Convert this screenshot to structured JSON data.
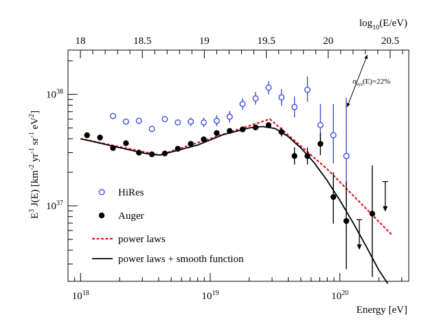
{
  "chart_data": {
    "type": "scatter",
    "x_axis": {
      "label": "Energy [eV]",
      "scale": "log",
      "range": [
        8e+17,
        3.4e+20
      ],
      "ticks": [
        {
          "value": 1e+18,
          "base": "10",
          "exp": "18"
        },
        {
          "value": 1e+19,
          "base": "10",
          "exp": "19"
        },
        {
          "value": 1e+20,
          "base": "10",
          "exp": "20"
        }
      ]
    },
    "top_axis": {
      "label_pre": "log",
      "label_sub": "10",
      "label_post": "(E/eV)",
      "range": [
        17.9,
        20.65
      ],
      "ticks": [
        {
          "value": 18,
          "label": "18"
        },
        {
          "value": 18.5,
          "label": "18.5"
        },
        {
          "value": 19,
          "label": "19"
        },
        {
          "value": 19.5,
          "label": "19.5"
        },
        {
          "value": 20,
          "label": "20"
        },
        {
          "value": 20.5,
          "label": "20.5"
        }
      ]
    },
    "y_axis": {
      "scale": "log",
      "range": [
        2.1e+36,
        2.5e+38
      ],
      "ticks": [
        {
          "value": 1e+37,
          "base": "10",
          "exp": "37"
        },
        {
          "value": 1e+38,
          "base": "10",
          "exp": "38"
        }
      ],
      "label_parts": [
        {
          "t": "E"
        },
        {
          "t": "3",
          "sup": true
        },
        {
          "t": " J(E) [km"
        },
        {
          "t": "-2",
          "sup": true
        },
        {
          "t": " yr"
        },
        {
          "t": "-1",
          "sup": true
        },
        {
          "t": " sr"
        },
        {
          "t": "-1",
          "sup": true
        },
        {
          "t": " eV"
        },
        {
          "t": "2",
          "sup": true
        },
        {
          "t": "]"
        }
      ]
    },
    "annotation": {
      "text_pre": "σ",
      "text_sub": "sys",
      "text_post": "(E)=22%",
      "shift": 1.22
    },
    "series": [
      {
        "name": "HiRes",
        "marker": "open-circle",
        "color": "#3a4bd8",
        "points": [
          {
            "log_e": 18.25,
            "y": 6.4e+37
          },
          {
            "log_e": 18.35,
            "y": 5.7e+37
          },
          {
            "log_e": 18.45,
            "y": 5.8e+37
          },
          {
            "log_e": 18.55,
            "y": 4.9e+37
          },
          {
            "log_e": 18.65,
            "y": 6e+37
          },
          {
            "log_e": 18.75,
            "y": 5.6e+37
          },
          {
            "log_e": 18.85,
            "y": 5.7e+37,
            "lo": 5.2e+37,
            "hi": 6.2e+37
          },
          {
            "log_e": 18.95,
            "y": 5.6e+37,
            "lo": 5.1e+37,
            "hi": 6.2e+37
          },
          {
            "log_e": 19.05,
            "y": 5.8e+37,
            "lo": 5.2e+37,
            "hi": 6.5e+37
          },
          {
            "log_e": 19.15,
            "y": 6.3e+37,
            "lo": 5.6e+37,
            "hi": 7.1e+37
          },
          {
            "log_e": 19.25,
            "y": 8.2e+37,
            "lo": 7.3e+37,
            "hi": 9.2e+37
          },
          {
            "log_e": 19.35,
            "y": 9.2e+37,
            "lo": 8.1e+37,
            "hi": 1.05e+38
          },
          {
            "log_e": 19.45,
            "y": 1.15e+38,
            "lo": 1e+38,
            "hi": 1.32e+38
          },
          {
            "log_e": 19.55,
            "y": 9.4e+37,
            "lo": 7.9e+37,
            "hi": 1.12e+38
          },
          {
            "log_e": 19.65,
            "y": 7.7e+37,
            "lo": 6.2e+37,
            "hi": 9.6e+37
          },
          {
            "log_e": 19.75,
            "y": 1.1e+38,
            "lo": 8.6e+37,
            "hi": 1.45e+38
          },
          {
            "log_e": 19.85,
            "y": 5.3e+37,
            "lo": 3.6e+37,
            "hi": 8.2e+37
          },
          {
            "log_e": 19.95,
            "y": 4.3e+37,
            "lo": 2.4e+37,
            "hi": 8.2e+37
          },
          {
            "log_e": 20.05,
            "y": 2.8e+37,
            "lo": 1e+37,
            "hi": 9.3e+37
          }
        ]
      },
      {
        "name": "Auger",
        "marker": "filled-circle",
        "color": "#000000",
        "points": [
          {
            "log_e": 18.05,
            "y": 4.3e+37
          },
          {
            "log_e": 18.15,
            "y": 4.1e+37
          },
          {
            "log_e": 18.25,
            "y": 3.3e+37
          },
          {
            "log_e": 18.35,
            "y": 3.65e+37
          },
          {
            "log_e": 18.45,
            "y": 3e+37
          },
          {
            "log_e": 18.55,
            "y": 2.9e+37
          },
          {
            "log_e": 18.65,
            "y": 2.95e+37
          },
          {
            "log_e": 18.75,
            "y": 3.25e+37
          },
          {
            "log_e": 18.85,
            "y": 3.6e+37
          },
          {
            "log_e": 18.95,
            "y": 3.95e+37
          },
          {
            "log_e": 19.05,
            "y": 4.5e+37
          },
          {
            "log_e": 19.15,
            "y": 4.7e+37
          },
          {
            "log_e": 19.25,
            "y": 4.85e+37
          },
          {
            "log_e": 19.35,
            "y": 5.05e+37
          },
          {
            "log_e": 19.45,
            "y": 5.3e+37
          },
          {
            "log_e": 19.55,
            "y": 4.6e+37,
            "lo": 4.2e+37,
            "hi": 5.05e+37
          },
          {
            "log_e": 19.65,
            "y": 2.8e+37,
            "lo": 2.35e+37,
            "hi": 3.35e+37
          },
          {
            "log_e": 19.75,
            "y": 2.8e+37,
            "lo": 2.35e+37,
            "hi": 3.35e+37
          },
          {
            "log_e": 19.85,
            "y": 3.6e+37,
            "lo": 2.85e+37,
            "hi": 4.5e+37
          },
          {
            "log_e": 19.95,
            "y": 1.2e+37,
            "lo": 6.9e+36,
            "hi": 2e+37
          },
          {
            "log_e": 20.05,
            "y": 7.3e+36,
            "lo": 2.7e+36,
            "hi": 1.65e+37
          },
          {
            "log_e": 20.25,
            "y": 8.5e+36,
            "lo": 2.3e+36,
            "hi": 2.3e+37
          }
        ],
        "upper_limits": [
          {
            "log_e": 20.15,
            "y": 7.5e+36
          },
          {
            "log_e": 20.35,
            "y": 1.65e+37
          }
        ]
      }
    ],
    "fits": [
      {
        "name": "power laws",
        "style": "dashed",
        "color": "#e8121d",
        "points": [
          {
            "log_e": 18.0,
            "y": 4e+37
          },
          {
            "log_e": 18.61,
            "y": 2.85e+37
          },
          {
            "log_e": 19.46,
            "y": 6e+37
          },
          {
            "log_e": 19.9,
            "y": 2.15e+37
          },
          {
            "log_e": 20.4,
            "y": 5.5e+36
          }
        ]
      },
      {
        "name": "power laws + smooth function",
        "style": "solid",
        "color": "#000000",
        "points": [
          {
            "log_e": 18.0,
            "y": 4e+37
          },
          {
            "log_e": 18.5,
            "y": 2.95e+37
          },
          {
            "log_e": 18.61,
            "y": 2.85e+37
          },
          {
            "log_e": 18.9,
            "y": 3.5e+37
          },
          {
            "log_e": 19.1,
            "y": 4.35e+37
          },
          {
            "log_e": 19.3,
            "y": 5e+37
          },
          {
            "log_e": 19.4,
            "y": 5.15e+37
          },
          {
            "log_e": 19.5,
            "y": 4.95e+37
          },
          {
            "log_e": 19.6,
            "y": 4.2e+37
          },
          {
            "log_e": 19.7,
            "y": 3.3e+37
          },
          {
            "log_e": 19.8,
            "y": 2.45e+37
          },
          {
            "log_e": 19.9,
            "y": 1.7e+37
          },
          {
            "log_e": 20.0,
            "y": 1.12e+37
          },
          {
            "log_e": 20.1,
            "y": 7.1e+36
          },
          {
            "log_e": 20.2,
            "y": 4.4e+36
          },
          {
            "log_e": 20.3,
            "y": 2.65e+36
          },
          {
            "log_e": 20.37,
            "y": 2e+36
          }
        ]
      }
    ],
    "legend": {
      "placement": "bottom-left",
      "entries": [
        "HiRes",
        "Auger",
        "power laws",
        "power laws + smooth function"
      ]
    }
  }
}
